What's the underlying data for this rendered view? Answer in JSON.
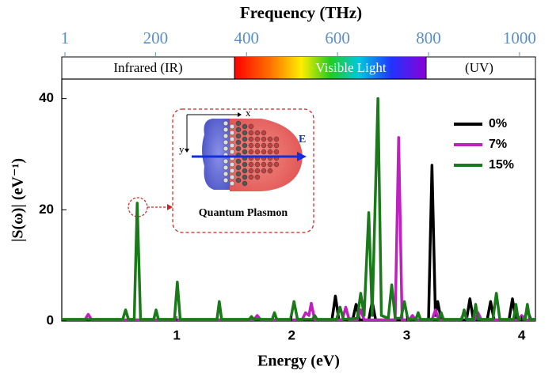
{
  "chart_data": {
    "type": "line",
    "title": "Frequency (THz)",
    "x_label": "Energy (eV)",
    "y_label": "|S(ω)| (eV⁻¹)",
    "xlim": [
      0,
      4.12
    ],
    "xticks": [
      1,
      2,
      3,
      4
    ],
    "ylim": [
      0,
      43.5
    ],
    "yticks": [
      0,
      20,
      40
    ],
    "x2lim": [
      -6,
      1035
    ],
    "x2ticks": [
      1,
      200,
      400,
      600,
      800,
      1000
    ],
    "x2_color": "#5b8fc9",
    "spectrum_regions": [
      "Infrared (IR)",
      "Visible Light",
      "(UV)"
    ],
    "inset": {
      "title": "Quantum Plasmon",
      "x_label": "x",
      "y_label": "y",
      "field_label": "E"
    },
    "legend": "upper right",
    "series": [
      {
        "name": "0%",
        "color": "#000000",
        "x": [
          0.0,
          2.35,
          2.38,
          2.41,
          2.53,
          2.56,
          2.59,
          2.67,
          2.7,
          2.73,
          3.19,
          3.22,
          3.25,
          3.27,
          3.3,
          3.52,
          3.55,
          3.58,
          3.7,
          3.73,
          3.76,
          3.89,
          3.92,
          3.95,
          4.02,
          4.05,
          4.08,
          4.12
        ],
        "values": [
          0.2,
          0.2,
          4.5,
          0.2,
          0.2,
          3,
          0.2,
          0.2,
          3.5,
          0.2,
          0.2,
          28,
          1,
          3.5,
          0.2,
          0.2,
          4,
          0.2,
          0.2,
          3.5,
          0.2,
          0.2,
          4,
          0.2,
          0.2,
          2,
          0.2,
          0.2
        ]
      },
      {
        "name": "7%",
        "color": "#c020c0",
        "x": [
          0.0,
          0.2,
          0.23,
          0.26,
          1.67,
          1.7,
          1.73,
          2.09,
          2.12,
          2.15,
          2.17,
          2.2,
          2.44,
          2.47,
          2.5,
          2.57,
          2.6,
          2.63,
          2.9,
          2.93,
          2.96,
          3.02,
          3.05,
          3.08,
          3.22,
          3.25,
          3.28,
          3.47,
          3.5,
          3.53,
          3.59,
          3.62,
          3.65,
          3.97,
          4.0,
          4.03,
          4.12
        ],
        "values": [
          0.2,
          0.2,
          1.2,
          0.2,
          0.2,
          1,
          0.2,
          0.2,
          1.5,
          1,
          3.2,
          0.2,
          0.2,
          2.5,
          0.2,
          0.2,
          2,
          0.2,
          0.2,
          33,
          0.2,
          0.2,
          1,
          0.2,
          0.2,
          2,
          0.2,
          0.2,
          1.5,
          0.2,
          0.2,
          1.5,
          0.2,
          0.2,
          1,
          0.2,
          0.2
        ]
      },
      {
        "name": "15%",
        "color": "#1a7a1a",
        "x": [
          0.0,
          0.53,
          0.555,
          0.58,
          0.63,
          0.656,
          0.685,
          0.8,
          0.82,
          0.84,
          0.98,
          1.005,
          1.03,
          1.35,
          1.37,
          1.39,
          1.63,
          1.65,
          1.67,
          1.83,
          1.85,
          1.87,
          1.99,
          2.02,
          2.05,
          2.18,
          2.2,
          2.22,
          2.39,
          2.42,
          2.45,
          2.57,
          2.6,
          2.63,
          2.67,
          2.7,
          2.75,
          2.78,
          2.84,
          2.87,
          2.9,
          2.95,
          2.98,
          3.01,
          3.08,
          3.1,
          3.12,
          3.28,
          3.3,
          3.32,
          3.48,
          3.5,
          3.52,
          3.58,
          3.6,
          3.62,
          3.75,
          3.78,
          3.81,
          3.93,
          3.95,
          3.97,
          4.03,
          4.05,
          4.07,
          4.12
        ],
        "values": [
          0.3,
          0.3,
          2,
          0.3,
          0.3,
          21.2,
          0.3,
          0.3,
          2,
          0.3,
          0.3,
          7,
          0.3,
          0.3,
          3.5,
          0.3,
          0.3,
          0.8,
          0.3,
          0.3,
          1.5,
          0.3,
          0.3,
          3.5,
          0.3,
          0.3,
          1,
          0.3,
          0.3,
          2.5,
          0.3,
          0.5,
          5,
          1,
          19.5,
          1,
          40,
          1,
          0.5,
          6.5,
          0.5,
          0.5,
          3.5,
          0.3,
          0.3,
          1.5,
          0.3,
          0.3,
          1.5,
          0.3,
          0.3,
          2,
          0.3,
          0.3,
          3,
          0.3,
          0.3,
          5,
          0.3,
          0.3,
          3,
          0.3,
          0.3,
          3,
          0.3,
          0.3
        ]
      }
    ]
  }
}
